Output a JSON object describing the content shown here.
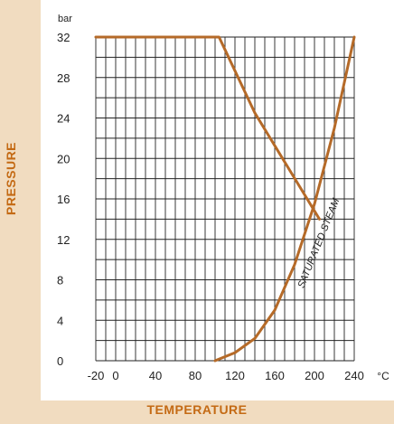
{
  "chart_data": {
    "type": "line",
    "xlabel": "TEMPERATURE",
    "ylabel": "PRESSURE",
    "x_unit": "°C",
    "y_unit": "bar",
    "xlim": [
      -20,
      240
    ],
    "ylim": [
      0,
      32
    ],
    "x_ticks": [
      -20,
      0,
      40,
      80,
      120,
      160,
      200,
      240
    ],
    "y_ticks": [
      0,
      4,
      8,
      12,
      16,
      20,
      24,
      28,
      32
    ],
    "grid": true,
    "colors": {
      "line": "#b56a28",
      "grid": "#222222",
      "label": "#c46a14"
    },
    "series": [
      {
        "points": [
          [
            -20,
            32
          ],
          [
            104,
            32
          ],
          [
            140,
            24.5
          ],
          [
            205,
            14
          ]
        ]
      },
      {
        "name": "SATURATED STEAM",
        "points": [
          [
            100,
            0
          ],
          [
            120,
            0.8
          ],
          [
            140,
            2.2
          ],
          [
            160,
            5
          ],
          [
            180,
            9.5
          ],
          [
            200,
            15.5
          ],
          [
            220,
            23
          ],
          [
            240,
            32
          ]
        ]
      }
    ]
  }
}
